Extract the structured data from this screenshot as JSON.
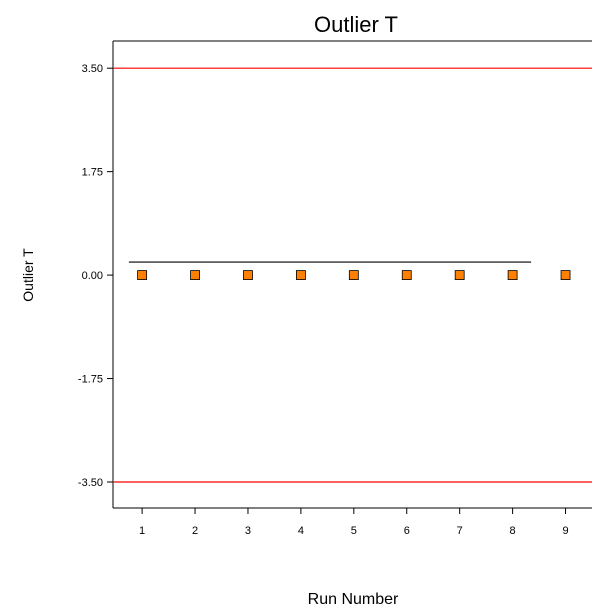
{
  "chart_data": {
    "type": "scatter",
    "title": "Outlier T",
    "xlabel": "Run Number",
    "ylabel": "Outlier T",
    "x_ticks": [
      1,
      2,
      3,
      4,
      5,
      6,
      7,
      8,
      9
    ],
    "y_ticks": [
      "3.50",
      "1.75",
      "0.00",
      "-1.75",
      "-3.50"
    ],
    "ylim": [
      -3.94,
      3.96
    ],
    "xlim": [
      0.45,
      9.5
    ],
    "series": [
      {
        "x": [
          1,
          2,
          3,
          4,
          5,
          6,
          7,
          8,
          9
        ],
        "y": [
          0.0,
          0.0,
          0.0,
          0.0,
          0.0,
          0.0,
          0.0,
          0.0,
          0.0
        ],
        "marker": "square",
        "color": "#ff8000"
      }
    ],
    "limit_lines": [
      {
        "y": 3.5,
        "color": "#ff0000"
      },
      {
        "y": -3.5,
        "color": "#ff0000"
      }
    ],
    "reference_line": {
      "y": 0.22,
      "x_from": 0.75,
      "x_to": 8.35,
      "color": "#000000"
    },
    "grid": false
  }
}
